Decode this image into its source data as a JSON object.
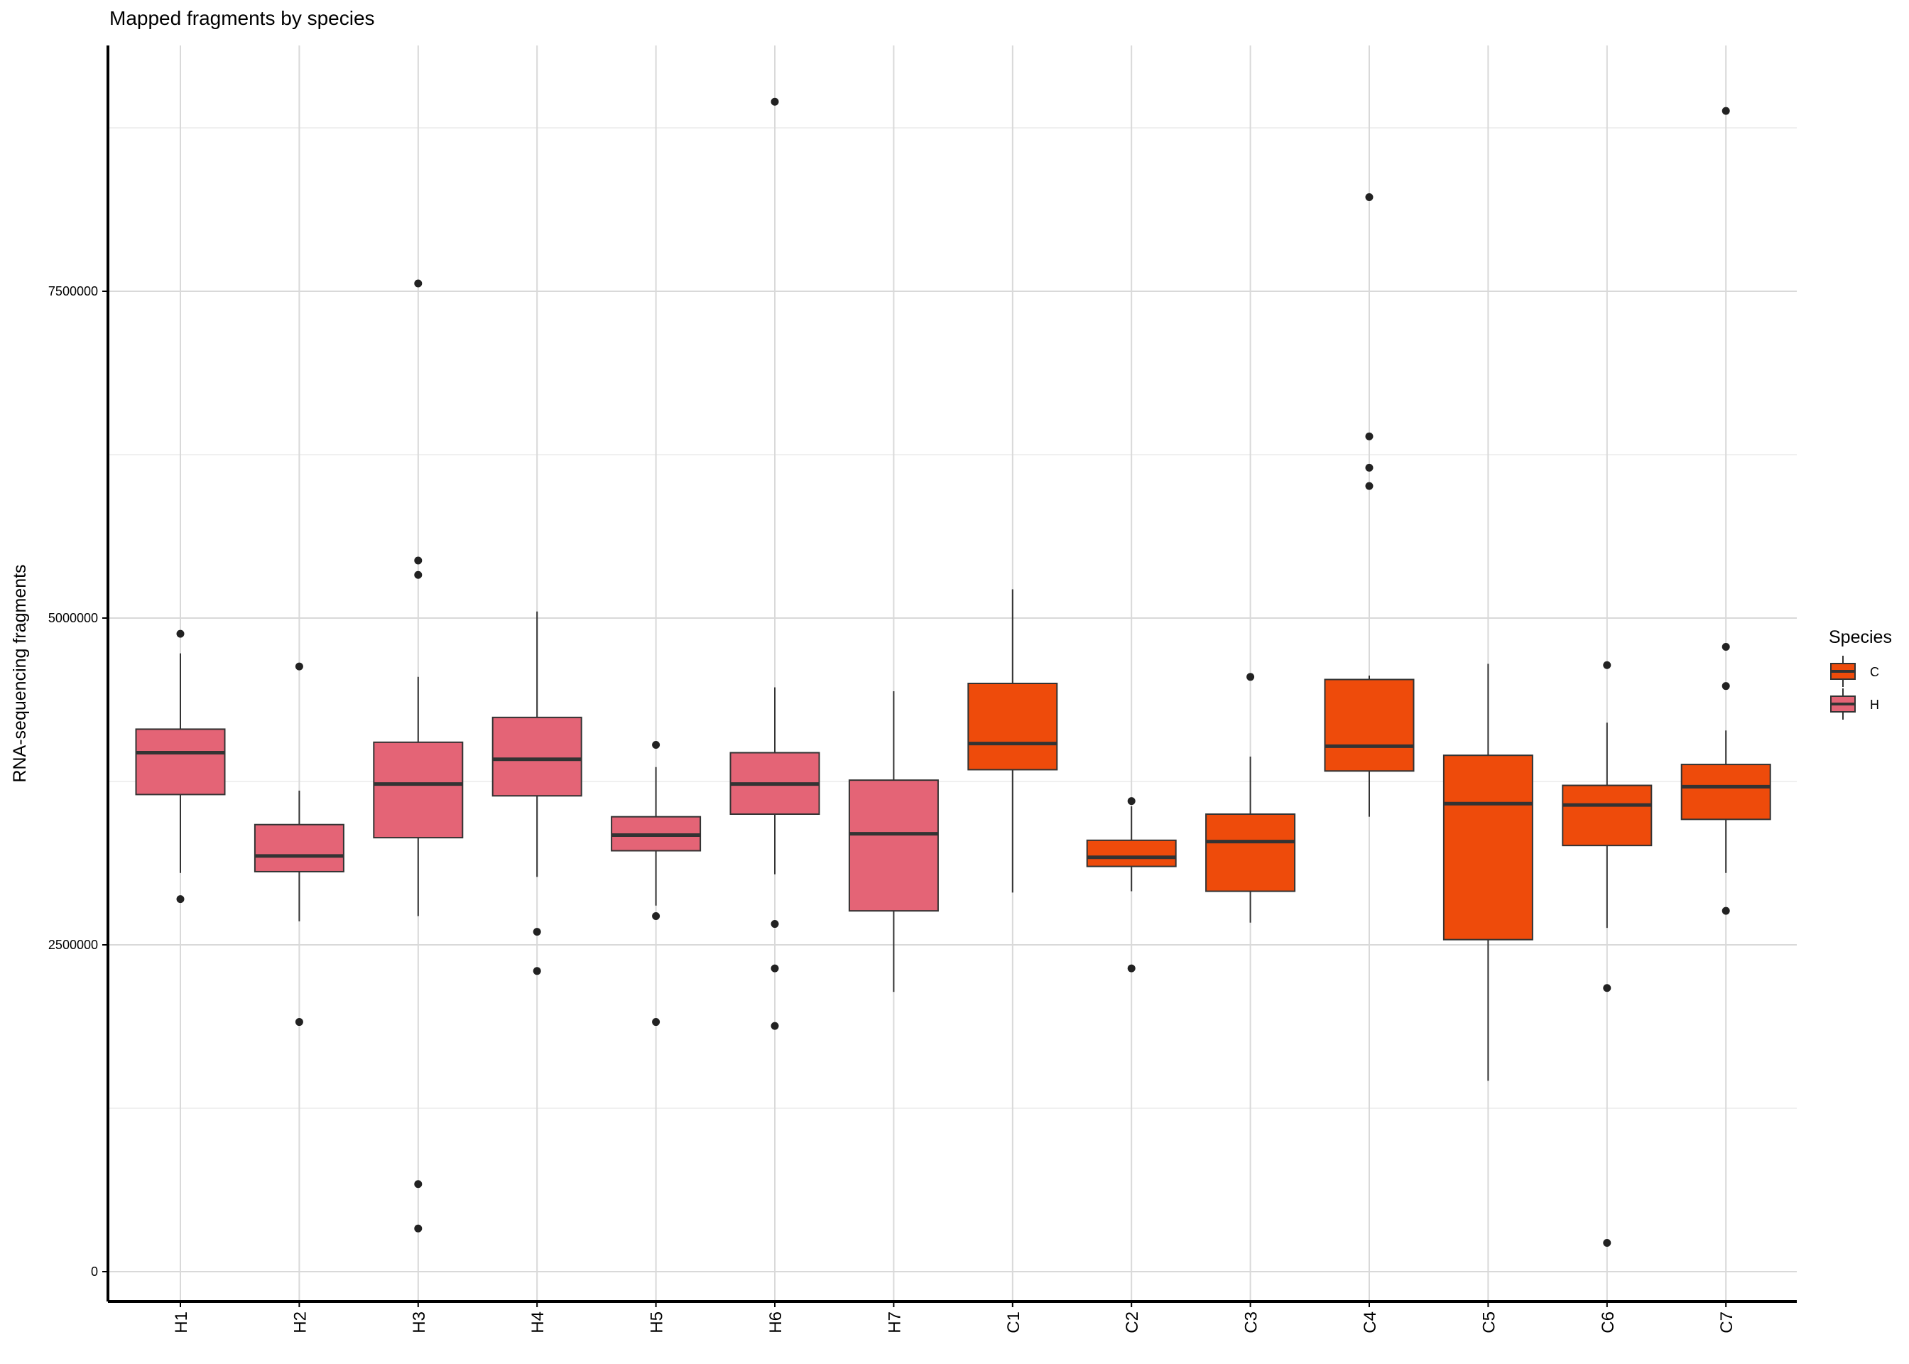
{
  "chart_data": {
    "type": "box",
    "title": "Mapped fragments by species",
    "xlabel": "",
    "ylabel": "RNA-sequencing fragments",
    "ylim": [
      -250000,
      9400000
    ],
    "yticks": [
      0,
      2500000,
      5000000,
      7500000
    ],
    "ytick_labels": [
      "0",
      "2500000",
      "5000000",
      "7500000"
    ],
    "grid": true,
    "legend": {
      "title": "Species",
      "position": "right",
      "entries": [
        {
          "label": "C",
          "color": "#EE4B0B"
        },
        {
          "label": "H",
          "color": "#E46476"
        }
      ]
    },
    "categories": [
      "H1",
      "H2",
      "H3",
      "H4",
      "H5",
      "H6",
      "H7",
      "C1",
      "C2",
      "C3",
      "C4",
      "C5",
      "C6",
      "C7"
    ],
    "boxes": [
      {
        "label": "H1",
        "group": "H",
        "whisker_low": 3050000,
        "q1": 3650000,
        "median": 3970000,
        "q3": 4150000,
        "whisker_high": 4730000,
        "outliers": [
          4880000,
          2850000
        ]
      },
      {
        "label": "H2",
        "group": "H",
        "whisker_low": 2680000,
        "q1": 3060000,
        "median": 3180000,
        "q3": 3420000,
        "whisker_high": 3680000,
        "outliers": [
          4630000,
          1910000
        ]
      },
      {
        "label": "H3",
        "group": "H",
        "whisker_low": 2720000,
        "q1": 3320000,
        "median": 3730000,
        "q3": 4050000,
        "whisker_high": 4550000,
        "outliers": [
          7560000,
          5440000,
          5330000,
          670000,
          330000
        ]
      },
      {
        "label": "H4",
        "group": "H",
        "whisker_low": 3020000,
        "q1": 3640000,
        "median": 3920000,
        "q3": 4240000,
        "whisker_high": 5050000,
        "outliers": [
          2600000,
          2300000
        ]
      },
      {
        "label": "H5",
        "group": "H",
        "whisker_low": 2800000,
        "q1": 3220000,
        "median": 3340000,
        "q3": 3480000,
        "whisker_high": 3860000,
        "outliers": [
          4030000,
          2720000,
          1910000
        ]
      },
      {
        "label": "H6",
        "group": "H",
        "whisker_low": 3040000,
        "q1": 3500000,
        "median": 3730000,
        "q3": 3970000,
        "whisker_high": 4470000,
        "outliers": [
          8950000,
          2660000,
          2320000,
          1880000
        ]
      },
      {
        "label": "H7",
        "group": "H",
        "whisker_low": 2140000,
        "q1": 2760000,
        "median": 3350000,
        "q3": 3760000,
        "whisker_high": 4440000,
        "outliers": []
      },
      {
        "label": "C1",
        "group": "C",
        "whisker_low": 2900000,
        "q1": 3840000,
        "median": 4040000,
        "q3": 4500000,
        "whisker_high": 5220000,
        "outliers": []
      },
      {
        "label": "C2",
        "group": "C",
        "whisker_low": 2910000,
        "q1": 3100000,
        "median": 3170000,
        "q3": 3300000,
        "whisker_high": 3560000,
        "outliers": [
          3600000,
          2320000
        ]
      },
      {
        "label": "C3",
        "group": "C",
        "whisker_low": 2670000,
        "q1": 2910000,
        "median": 3290000,
        "q3": 3500000,
        "whisker_high": 3940000,
        "outliers": [
          4550000
        ]
      },
      {
        "label": "C4",
        "group": "C",
        "whisker_low": 3480000,
        "q1": 3830000,
        "median": 4020000,
        "q3": 4530000,
        "whisker_high": 4560000,
        "outliers": [
          8220000,
          6390000,
          6150000,
          6010000
        ]
      },
      {
        "label": "C5",
        "group": "C",
        "whisker_low": 1460000,
        "q1": 2540000,
        "median": 3580000,
        "q3": 3950000,
        "whisker_high": 4650000,
        "outliers": []
      },
      {
        "label": "C6",
        "group": "C",
        "whisker_low": 2630000,
        "q1": 3260000,
        "median": 3570000,
        "q3": 3720000,
        "whisker_high": 4200000,
        "outliers": [
          4640000,
          2170000,
          220000
        ]
      },
      {
        "label": "C7",
        "group": "C",
        "whisker_low": 3050000,
        "q1": 3460000,
        "median": 3710000,
        "q3": 3880000,
        "whisker_high": 4140000,
        "outliers": [
          8880000,
          4780000,
          4480000,
          2760000
        ]
      }
    ]
  }
}
